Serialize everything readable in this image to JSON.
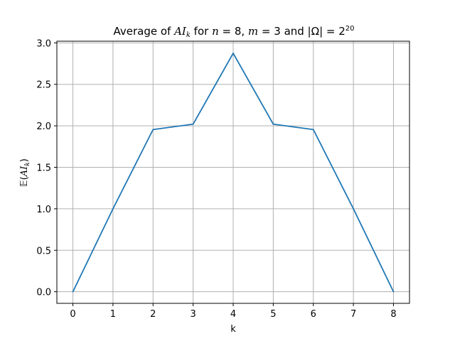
{
  "chart_data": {
    "type": "line",
    "title": {
      "p1": "Average of ",
      "ai": "AI",
      "k": "k",
      "p2": " for ",
      "n_var": "n",
      "n_eq": " = 8, ",
      "m_var": "m",
      "m_eq": " = 3 and |Ω| = 2",
      "exp": "20"
    },
    "xlabel": "k",
    "ylabel": {
      "E": "𝔼",
      "open": "(",
      "ai": "AI",
      "k": "k",
      "close": ")"
    },
    "x": [
      0,
      1,
      2,
      3,
      4,
      5,
      6,
      7,
      8
    ],
    "series": [
      {
        "values": [
          0.0,
          1.0,
          1.955,
          2.02,
          2.875,
          2.02,
          1.955,
          1.0,
          0.0
        ],
        "color": "#1f77b4"
      }
    ],
    "xlim": [
      -0.4,
      8.4
    ],
    "ylim": [
      -0.14,
      3.02
    ],
    "xticks": [
      "0",
      "1",
      "2",
      "3",
      "4",
      "5",
      "6",
      "7",
      "8"
    ],
    "yticks": [
      "0.0",
      "0.5",
      "1.0",
      "1.5",
      "2.0",
      "2.5",
      "3.0"
    ],
    "grid": true,
    "grid_color": "#b0b0b0"
  }
}
